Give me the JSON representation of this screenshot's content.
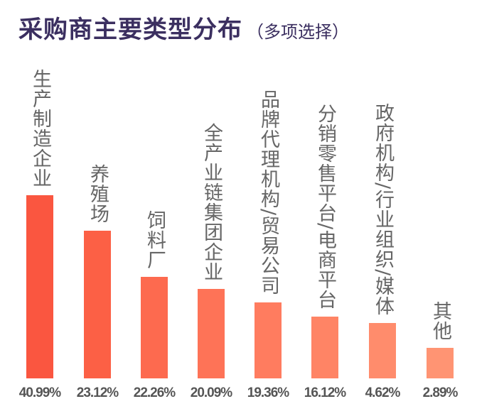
{
  "chart_data": {
    "type": "bar",
    "title": "采购商主要类型分布",
    "subtitle": "（多项选择）",
    "categories": [
      "生产制造企业",
      "养殖场",
      "饲料厂",
      "全产业链集团企业",
      "品牌代理机构/贸易公司",
      "分销零售平台/电商平台",
      "政府机构/行业组织/媒体",
      "其他"
    ],
    "values": [
      40.99,
      23.12,
      22.26,
      20.09,
      19.36,
      16.12,
      4.62,
      2.89
    ],
    "value_labels": [
      "40.99%",
      "23.12%",
      "22.26%",
      "20.09%",
      "19.36%",
      "16.12%",
      "4.62%",
      "2.89%"
    ],
    "unit": "%",
    "grid": false,
    "legend": "none",
    "colors": [
      "#fa5640",
      "#fc6045",
      "#fd6a4f",
      "#fe7357",
      "#ff7c5f",
      "#ff8465",
      "#ff8c6c",
      "#ff9473"
    ]
  }
}
